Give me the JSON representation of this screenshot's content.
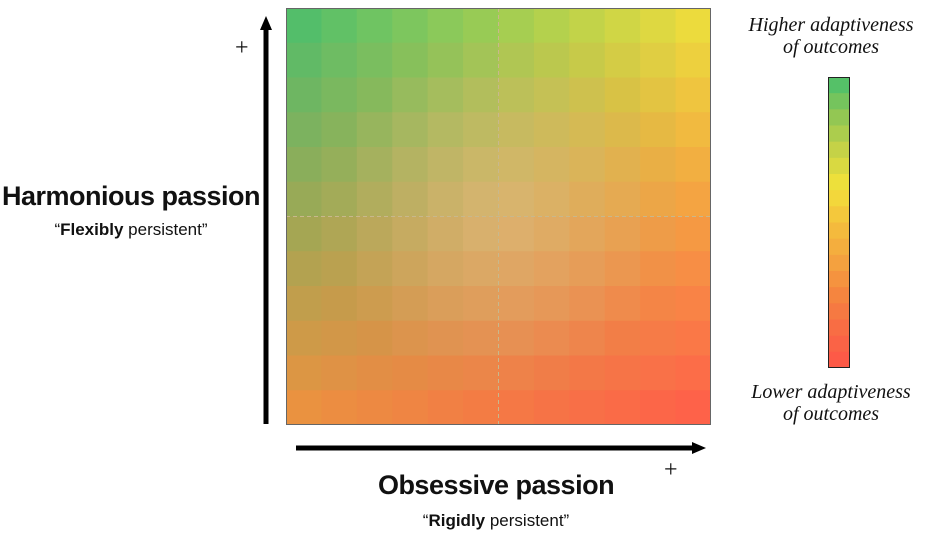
{
  "y_axis": {
    "title": "Harmonious passion",
    "subtitle_quote_open": "“",
    "subtitle_bold": "Flexibly",
    "subtitle_rest": " persistent”",
    "plus": "+"
  },
  "x_axis": {
    "title": "Obsessive passion",
    "subtitle_quote_open": "“",
    "subtitle_bold": "Rigidly",
    "subtitle_rest": " persistent”",
    "plus": "+"
  },
  "legend": {
    "high_line1": "Higher adaptiveness",
    "high_line2": "of outcomes",
    "low_line1": "Lower adaptiveness",
    "low_line2": "of outcomes"
  },
  "chart_data": {
    "type": "heatmap",
    "grid": {
      "cols": 12,
      "rows": 12
    },
    "colors": {
      "top_left": "#45BF6E",
      "top_right": "#F2E23A",
      "bottom_left": "#F0923E",
      "bottom_right": "#FF5A4A",
      "center_tint": "#EFC9A2"
    },
    "colorbar_stops": [
      "#45BF6E",
      "#8DC655",
      "#C5D247",
      "#F2E23A",
      "#F4C03C",
      "#F4A53F",
      "#F5853F",
      "#F86A45",
      "#FF5548"
    ],
    "divider_color": "#C8B88C"
  }
}
